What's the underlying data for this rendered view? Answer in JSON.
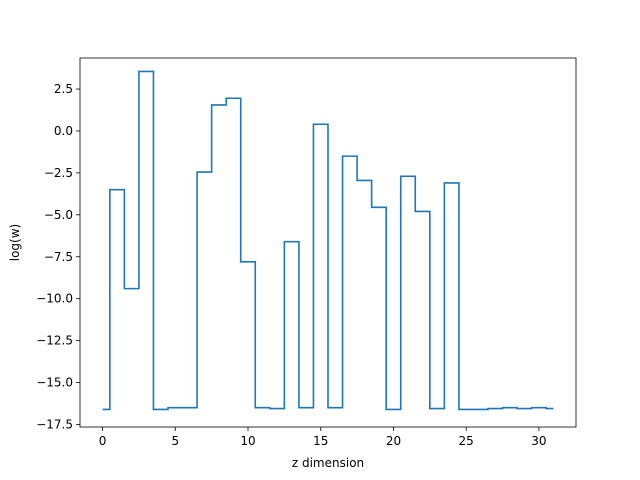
{
  "chart_data": {
    "type": "line",
    "drawstyle": "steps-mid",
    "title": "",
    "xlabel": "z dimension",
    "ylabel": "log(w)",
    "xlim": [
      -1.55,
      32.55
    ],
    "ylim": [
      -17.65,
      4.35
    ],
    "xticks": [
      0,
      5,
      10,
      15,
      20,
      25,
      30
    ],
    "xtick_labels": [
      "0",
      "5",
      "10",
      "15",
      "20",
      "25",
      "30"
    ],
    "yticks": [
      2.5,
      0.0,
      -2.5,
      -5.0,
      -7.5,
      -10.0,
      -12.5,
      -15.0,
      -17.5
    ],
    "ytick_labels": [
      "2.5",
      "0.0",
      "−2.5",
      "−5.0",
      "−7.5",
      "−10.0",
      "−12.5",
      "−15.0",
      "−17.5"
    ],
    "grid": false,
    "series": [
      {
        "color": "#1f77b4",
        "x": [
          0,
          1,
          2,
          3,
          4,
          5,
          6,
          7,
          8,
          9,
          10,
          11,
          12,
          13,
          14,
          15,
          16,
          17,
          18,
          19,
          20,
          21,
          22,
          23,
          24,
          25,
          26,
          27,
          28,
          29,
          30,
          31
        ],
        "values": [
          -16.6,
          -3.5,
          -9.4,
          3.55,
          -16.6,
          -16.5,
          -16.5,
          -2.45,
          1.55,
          1.95,
          -7.8,
          -16.5,
          -16.55,
          -6.6,
          -16.5,
          0.4,
          -16.5,
          -1.5,
          -2.95,
          -4.55,
          -16.6,
          -2.7,
          -4.8,
          -16.55,
          -3.1,
          -16.6,
          -16.6,
          -16.55,
          -16.5,
          -16.55,
          -16.5,
          -16.55
        ]
      }
    ]
  }
}
